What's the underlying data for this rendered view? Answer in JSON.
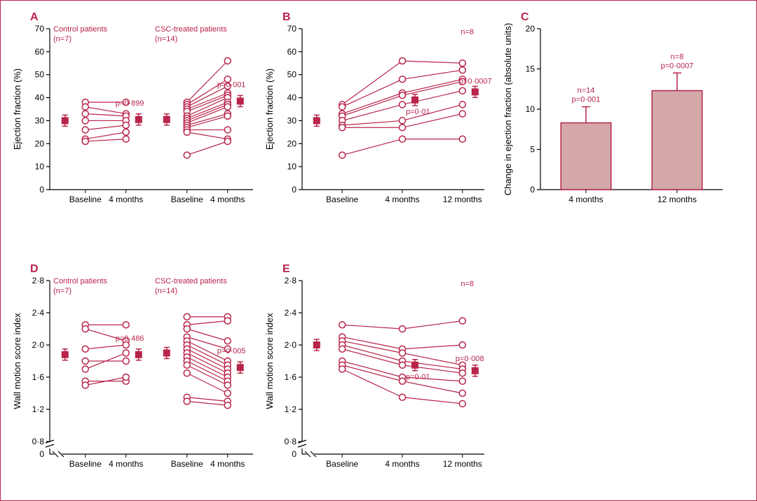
{
  "colors": {
    "stroke": "#b8244a",
    "fill_bar": "#d4a8a8",
    "text": "#b8244a",
    "axis": "#000000",
    "bg": "#ffffff"
  },
  "typography": {
    "panel_letter_size": 16,
    "panel_letter_weight": "bold",
    "axis_label_size": 13,
    "tick_label_size": 12,
    "annotation_size": 11
  },
  "panelA": {
    "letter": "A",
    "ylabel": "Ejection fraction (%)",
    "ylim": [
      0,
      70
    ],
    "ytick_step": 10,
    "groups": [
      {
        "name": "Control patients",
        "n_label": "(n=7)",
        "xticks": [
          "Baseline",
          "4 months"
        ],
        "lines": [
          [
            38,
            38
          ],
          [
            36,
            33
          ],
          [
            33,
            32
          ],
          [
            30,
            30
          ],
          [
            26,
            28
          ],
          [
            22,
            25
          ],
          [
            21,
            22
          ]
        ],
        "means": [
          30,
          30.5
        ],
        "p_label": "p=0·899"
      },
      {
        "name": "CSC-treated patients",
        "n_label": "(n=14)",
        "xticks": [
          "Baseline",
          "4 months"
        ],
        "lines": [
          [
            38,
            56
          ],
          [
            37,
            48
          ],
          [
            36,
            45
          ],
          [
            35,
            42
          ],
          [
            34,
            41
          ],
          [
            32,
            40
          ],
          [
            31,
            38
          ],
          [
            30,
            37
          ],
          [
            29,
            36
          ],
          [
            28,
            33
          ],
          [
            27,
            32
          ],
          [
            26,
            26
          ],
          [
            25,
            22
          ],
          [
            15,
            21
          ]
        ],
        "means": [
          30.5,
          38.5
        ],
        "p_label": "p=0·001"
      }
    ]
  },
  "panelB": {
    "letter": "B",
    "ylabel": "Ejection fraction (%)",
    "ylim": [
      0,
      70
    ],
    "ytick_step": 10,
    "n_label": "n=8",
    "xticks": [
      "Baseline",
      "4 months",
      "12 months"
    ],
    "lines": [
      [
        37,
        56,
        55
      ],
      [
        36,
        48,
        52
      ],
      [
        33,
        42,
        48
      ],
      [
        32,
        41,
        47
      ],
      [
        30,
        37,
        43
      ],
      [
        28,
        30,
        37
      ],
      [
        27,
        27,
        33
      ],
      [
        15,
        22,
        22
      ]
    ],
    "means": [
      30,
      39,
      42.5
    ],
    "p_labels": [
      "p=0·01",
      "p=0·0007"
    ]
  },
  "panelC": {
    "letter": "C",
    "ylabel": "Change in ejection fraction (absolute units)",
    "ylim": [
      0,
      20
    ],
    "ytick_step": 5,
    "bars": [
      {
        "label": "4 months",
        "value": 8.3,
        "err": 2.0,
        "n_label": "n=14",
        "p_label": "p=0·001"
      },
      {
        "label": "12 months",
        "value": 12.3,
        "err": 2.2,
        "n_label": "n=8",
        "p_label": "p=0·0007"
      }
    ],
    "bar_width": 0.55
  },
  "panelD": {
    "letter": "D",
    "ylabel": "Wall motion score index",
    "ylim": [
      0.8,
      2.8
    ],
    "ytick_step": 0.4,
    "broken": true,
    "groups": [
      {
        "name": "Control patients",
        "n_label": "(n=7)",
        "xticks": [
          "Baseline",
          "4 months"
        ],
        "lines": [
          [
            2.25,
            2.25
          ],
          [
            2.2,
            2.05
          ],
          [
            1.95,
            2.0
          ],
          [
            1.8,
            1.8
          ],
          [
            1.7,
            1.9
          ],
          [
            1.55,
            1.55
          ],
          [
            1.5,
            1.6
          ]
        ],
        "means": [
          1.88,
          1.88
        ],
        "p_label": "p=0·486"
      },
      {
        "name": "CSC-treated patients",
        "n_label": "(n=14)",
        "xticks": [
          "Baseline",
          "4 months"
        ],
        "lines": [
          [
            2.35,
            2.35
          ],
          [
            2.25,
            2.3
          ],
          [
            2.2,
            2.05
          ],
          [
            2.1,
            1.95
          ],
          [
            2.05,
            1.8
          ],
          [
            2.0,
            1.75
          ],
          [
            1.95,
            1.7
          ],
          [
            1.9,
            1.65
          ],
          [
            1.85,
            1.6
          ],
          [
            1.8,
            1.55
          ],
          [
            1.75,
            1.5
          ],
          [
            1.65,
            1.4
          ],
          [
            1.35,
            1.3
          ],
          [
            1.3,
            1.25
          ]
        ],
        "means": [
          1.9,
          1.72
        ],
        "p_label": "p=0·005"
      }
    ]
  },
  "panelE": {
    "letter": "E",
    "ylabel": "Wall motion score index",
    "ylim": [
      0.8,
      2.8
    ],
    "ytick_step": 0.4,
    "broken": true,
    "n_label": "n=8",
    "xticks": [
      "Baseline",
      "4 months",
      "12 months"
    ],
    "lines": [
      [
        2.25,
        2.2,
        2.3
      ],
      [
        2.1,
        1.95,
        2.0
      ],
      [
        2.05,
        1.9,
        1.75
      ],
      [
        2.0,
        1.8,
        1.7
      ],
      [
        1.95,
        1.75,
        1.65
      ],
      [
        1.8,
        1.6,
        1.55
      ],
      [
        1.75,
        1.55,
        1.4
      ],
      [
        1.7,
        1.35,
        1.27
      ]
    ],
    "means": [
      2.0,
      1.75,
      1.68
    ],
    "p_labels": [
      "p=0·01",
      "p=0·008"
    ]
  }
}
